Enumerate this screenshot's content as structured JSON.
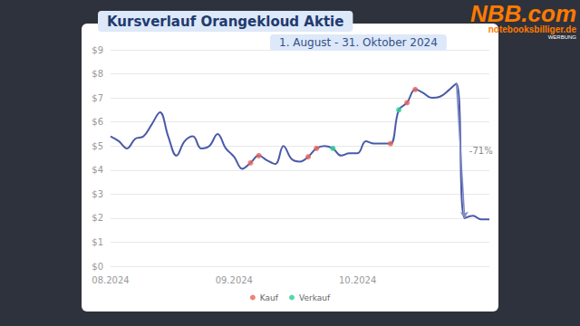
{
  "chart_data": {
    "type": "line",
    "title": "Kursverlauf Orangekloud Aktie",
    "subtitle": "1. August - 31. Oktober 2024",
    "categories": [
      "08.2024",
      null,
      null,
      null,
      null,
      null,
      null,
      null,
      null,
      null,
      null,
      null,
      null,
      null,
      null,
      "09.2024",
      null,
      null,
      null,
      null,
      null,
      null,
      null,
      null,
      null,
      null,
      null,
      null,
      null,
      null,
      "10.2024",
      null,
      null,
      null,
      null,
      null,
      null,
      null,
      null,
      null,
      null,
      null,
      null,
      null,
      null,
      null,
      null
    ],
    "series": [
      {
        "type": "line",
        "color": "#4a5aa8",
        "values": [
          5.4,
          5.2,
          4.9,
          5.3,
          5.4,
          5.9,
          6.4,
          5.4,
          4.6,
          5.2,
          5.4,
          4.9,
          5.0,
          5.5,
          4.9,
          4.55,
          4.05,
          4.3,
          4.6,
          4.4,
          4.25,
          5.0,
          4.45,
          4.35,
          4.55,
          4.9,
          5.0,
          4.9,
          4.6,
          4.7,
          4.7,
          5.2,
          5.1,
          5.1,
          5.1,
          6.5,
          6.8,
          7.35,
          7.2,
          7.0,
          7.05,
          7.3,
          7.6,
          2.0,
          2.1,
          1.95,
          1.95
        ]
      },
      {
        "name": "Kauf",
        "type": "scatter",
        "color": "#e8645a",
        "values": [
          null,
          null,
          null,
          null,
          null,
          null,
          null,
          null,
          null,
          null,
          null,
          null,
          null,
          null,
          null,
          null,
          null,
          4.3,
          4.6,
          null,
          null,
          null,
          null,
          null,
          4.55,
          4.9,
          null,
          null,
          null,
          null,
          null,
          null,
          null,
          null,
          5.1,
          null,
          6.8,
          7.35,
          null,
          null,
          null,
          null,
          null,
          null,
          null,
          null,
          null
        ]
      },
      {
        "name": "Verkauf",
        "type": "scatter",
        "color": "#2ecc9a",
        "values": [
          null,
          null,
          null,
          null,
          null,
          null,
          null,
          null,
          null,
          null,
          null,
          null,
          null,
          null,
          null,
          null,
          null,
          null,
          null,
          null,
          null,
          null,
          null,
          null,
          null,
          null,
          null,
          4.9,
          null,
          null,
          null,
          null,
          null,
          null,
          null,
          6.5,
          null,
          null,
          null,
          null,
          null,
          null,
          null,
          null,
          null,
          null,
          null
        ]
      }
    ],
    "annotations": [
      "-71%"
    ],
    "ylim": [
      0,
      9
    ],
    "yticks": [
      {
        "value": 0,
        "label": "$0"
      },
      {
        "value": 1,
        "label": "$1"
      },
      {
        "value": 2,
        "label": "$2"
      },
      {
        "value": 3,
        "label": "$3"
      },
      {
        "value": 4,
        "label": "$4"
      },
      {
        "value": 5,
        "label": "$5"
      },
      {
        "value": 6,
        "label": "$6"
      },
      {
        "value": 7,
        "label": "$7"
      },
      {
        "value": 8,
        "label": "$8"
      },
      {
        "value": 9,
        "label": "$9"
      }
    ],
    "grid": true,
    "legend": "bottom",
    "sponsor": {
      "name": "NBB.com",
      "site": "notebooksbilliger.de",
      "note": "WERBUNG"
    }
  }
}
